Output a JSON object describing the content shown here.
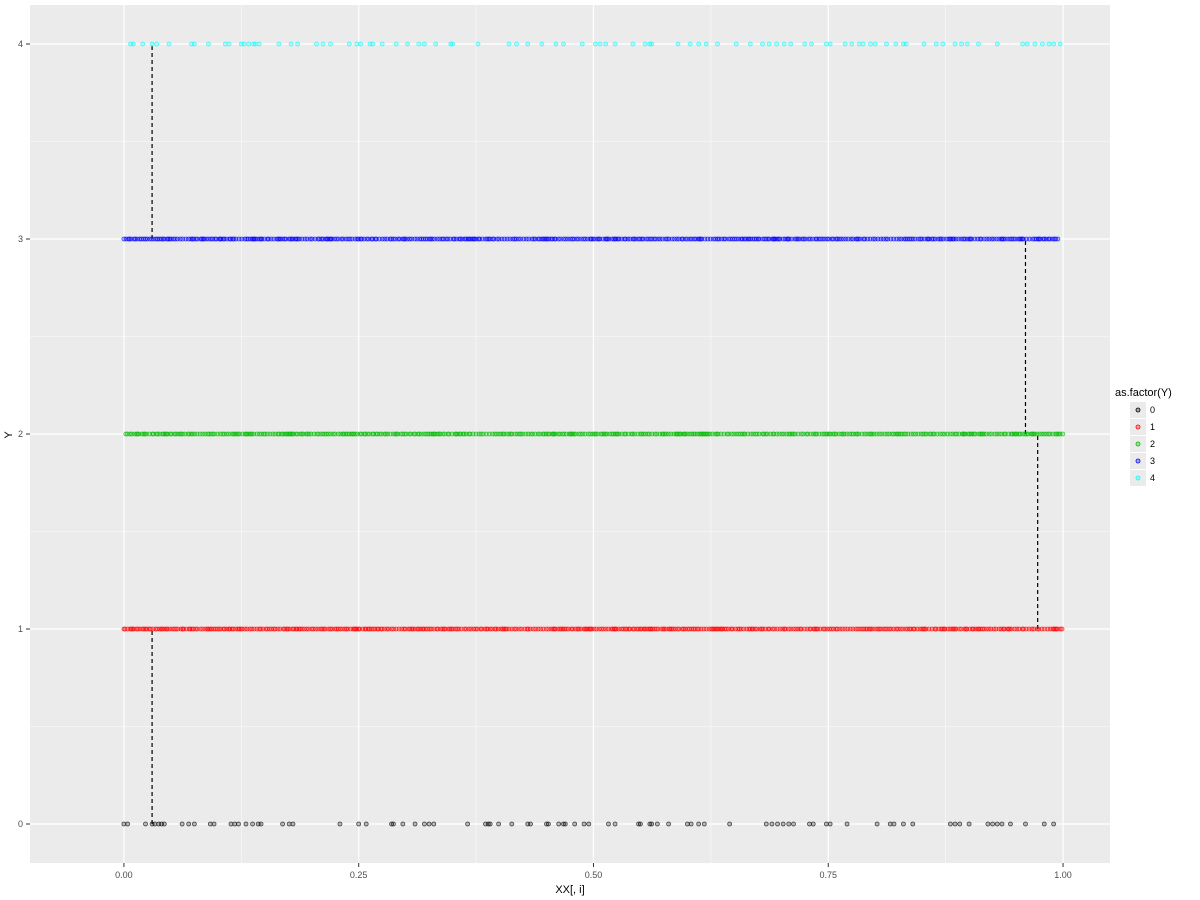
{
  "chart_data": {
    "type": "scatter",
    "title": "",
    "xlabel": "XX[, i]",
    "ylabel": "Y",
    "xlim": [
      -0.1,
      1.05
    ],
    "ylim": [
      -0.2,
      4.2
    ],
    "x_ticks": [
      "0.00",
      "0.25",
      "0.50",
      "0.75",
      "1.00"
    ],
    "x_tick_values": [
      0,
      0.25,
      0.5,
      0.75,
      1.0
    ],
    "y_ticks": [
      "0",
      "1",
      "2",
      "3",
      "4"
    ],
    "y_tick_values": [
      0,
      1,
      2,
      3,
      4
    ],
    "grid": true,
    "legend": {
      "title": "as.factor(Y)",
      "position": "right",
      "entries": [
        "0",
        "1",
        "2",
        "3",
        "4"
      ]
    },
    "colors": {
      "0": "#000000",
      "1": "#ff0000",
      "2": "#00bb00",
      "3": "#0000ff",
      "4": "#00ffff",
      "panel": "#ebebeb",
      "grid_major": "#ffffff"
    },
    "series": [
      {
        "name": "0",
        "y": 0,
        "x": [
          0.0,
          0.004,
          0.023,
          0.03,
          0.033,
          0.037,
          0.04,
          0.043,
          0.062,
          0.069,
          0.075,
          0.092,
          0.096,
          0.114,
          0.118,
          0.122,
          0.13,
          0.137,
          0.143,
          0.146,
          0.169,
          0.176,
          0.18,
          0.23,
          0.25,
          0.258,
          0.285,
          0.287,
          0.297,
          0.31,
          0.32,
          0.325,
          0.33,
          0.366,
          0.385,
          0.388,
          0.39,
          0.399,
          0.413,
          0.43,
          0.433,
          0.45,
          0.452,
          0.463,
          0.468,
          0.47,
          0.48,
          0.49,
          0.495,
          0.516,
          0.523,
          0.548,
          0.55,
          0.56,
          0.562,
          0.568,
          0.58,
          0.6,
          0.604,
          0.612,
          0.618,
          0.645,
          0.684,
          0.69,
          0.696,
          0.702,
          0.708,
          0.713,
          0.73,
          0.734,
          0.748,
          0.752,
          0.77,
          0.802,
          0.816,
          0.82,
          0.83,
          0.84,
          0.88,
          0.885,
          0.89,
          0.9,
          0.92,
          0.925,
          0.93,
          0.935,
          0.944,
          0.96,
          0.98,
          0.99
        ]
      },
      {
        "name": "1",
        "y": 1,
        "x_range": [
          0.0,
          1.0
        ],
        "density": "dense"
      },
      {
        "name": "2",
        "y": 2,
        "x_range": [
          0.002,
          1.0
        ],
        "density": "dense"
      },
      {
        "name": "3",
        "y": 3,
        "x_range": [
          0.0,
          0.995
        ],
        "density": "dense"
      },
      {
        "name": "4",
        "y": 4,
        "x": [
          0.007,
          0.01,
          0.02,
          0.03,
          0.035,
          0.048,
          0.072,
          0.075,
          0.09,
          0.108,
          0.112,
          0.125,
          0.128,
          0.133,
          0.138,
          0.14,
          0.144,
          0.165,
          0.178,
          0.185,
          0.205,
          0.212,
          0.22,
          0.24,
          0.248,
          0.252,
          0.262,
          0.265,
          0.275,
          0.29,
          0.302,
          0.314,
          0.32,
          0.332,
          0.348,
          0.35,
          0.377,
          0.41,
          0.418,
          0.43,
          0.445,
          0.46,
          0.468,
          0.488,
          0.502,
          0.507,
          0.513,
          0.523,
          0.542,
          0.555,
          0.56,
          0.562,
          0.59,
          0.603,
          0.612,
          0.62,
          0.632,
          0.652,
          0.667,
          0.68,
          0.687,
          0.695,
          0.703,
          0.71,
          0.725,
          0.732,
          0.748,
          0.752,
          0.768,
          0.775,
          0.783,
          0.787,
          0.795,
          0.8,
          0.812,
          0.822,
          0.83,
          0.833,
          0.852,
          0.865,
          0.872,
          0.885,
          0.892,
          0.898,
          0.91,
          0.93,
          0.957,
          0.962,
          0.97,
          0.978,
          0.985,
          0.99,
          0.997
        ]
      }
    ],
    "vlines": [
      {
        "x": 0.03,
        "y_from": 3,
        "y_to": 4
      },
      {
        "x": 0.03,
        "y_from": 0,
        "y_to": 1
      },
      {
        "x": 0.96,
        "y_from": 2,
        "y_to": 3
      },
      {
        "x": 0.973,
        "y_from": 1,
        "y_to": 2
      }
    ]
  }
}
